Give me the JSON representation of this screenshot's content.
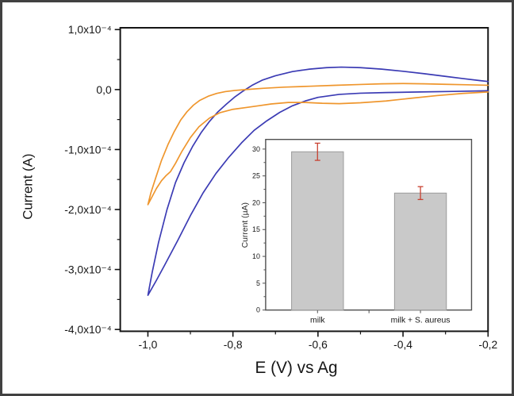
{
  "figure": {
    "background": "#ffffff",
    "border_color": "#414141"
  },
  "chart_data": [
    {
      "type": "line",
      "name": "cyclic-voltammogram",
      "title": "",
      "xlabel": "E (V) vs Ag",
      "ylabel": "Current (A)",
      "grid": false,
      "legend": "none",
      "xlim": [
        -1.065,
        -0.2
      ],
      "ylim_1e4_A": [
        -4.03,
        1.03
      ],
      "x_major_ticks": {
        "values": [
          -1.0,
          -0.8,
          -0.6,
          -0.4,
          -0.2
        ],
        "labels": [
          "-1,0",
          "-0,8",
          "-0,6",
          "-0,4",
          "-0,2"
        ]
      },
      "x_minor_ticks": [
        -0.9,
        -0.7,
        -0.5,
        -0.3
      ],
      "y_major_ticks": {
        "values_1e4": [
          1.0,
          0.0,
          -1.0,
          -2.0,
          -3.0,
          -4.0
        ],
        "labels": [
          "1,0x10⁻⁴",
          "0,0",
          "-1,0x10⁻⁴",
          "-2,0x10⁻⁴",
          "-3,0x10⁻⁴",
          "-4,0x10⁻⁴"
        ]
      },
      "y_minor_ticks_1e4": [
        0.5,
        -0.5,
        -1.5,
        -2.5,
        -3.5
      ],
      "series": [
        {
          "name": "blue CV scan",
          "color": "#3b3bb4",
          "points_E_vs_I1e4": [
            [
              -0.2,
              -0.02
            ],
            [
              -0.28,
              -0.03
            ],
            [
              -0.36,
              -0.04
            ],
            [
              -0.44,
              -0.05
            ],
            [
              -0.5,
              -0.06
            ],
            [
              -0.55,
              -0.08
            ],
            [
              -0.6,
              -0.13
            ],
            [
              -0.63,
              -0.19
            ],
            [
              -0.66,
              -0.27
            ],
            [
              -0.69,
              -0.38
            ],
            [
              -0.72,
              -0.52
            ],
            [
              -0.75,
              -0.68
            ],
            [
              -0.78,
              -0.89
            ],
            [
              -0.81,
              -1.13
            ],
            [
              -0.84,
              -1.4
            ],
            [
              -0.87,
              -1.72
            ],
            [
              -0.9,
              -2.1
            ],
            [
              -0.93,
              -2.52
            ],
            [
              -0.96,
              -2.92
            ],
            [
              -0.98,
              -3.18
            ],
            [
              -1.0,
              -3.43
            ],
            [
              -0.99,
              -3.05
            ],
            [
              -0.975,
              -2.55
            ],
            [
              -0.955,
              -2.0
            ],
            [
              -0.935,
              -1.55
            ],
            [
              -0.915,
              -1.22
            ],
            [
              -0.895,
              -0.95
            ],
            [
              -0.875,
              -0.72
            ],
            [
              -0.855,
              -0.53
            ],
            [
              -0.835,
              -0.37
            ],
            [
              -0.815,
              -0.24
            ],
            [
              -0.795,
              -0.12
            ],
            [
              -0.775,
              -0.02
            ],
            [
              -0.755,
              0.07
            ],
            [
              -0.73,
              0.16
            ],
            [
              -0.7,
              0.23
            ],
            [
              -0.66,
              0.3
            ],
            [
              -0.62,
              0.34
            ],
            [
              -0.58,
              0.365
            ],
            [
              -0.545,
              0.375
            ],
            [
              -0.5,
              0.365
            ],
            [
              -0.45,
              0.34
            ],
            [
              -0.4,
              0.305
            ],
            [
              -0.35,
              0.265
            ],
            [
              -0.3,
              0.22
            ],
            [
              -0.26,
              0.185
            ],
            [
              -0.22,
              0.15
            ],
            [
              -0.2,
              0.135
            ]
          ]
        },
        {
          "name": "orange CV scan",
          "color": "#ef962d",
          "points_E_vs_I1e4": [
            [
              -0.2,
              -0.04
            ],
            [
              -0.26,
              -0.065
            ],
            [
              -0.32,
              -0.1
            ],
            [
              -0.38,
              -0.145
            ],
            [
              -0.44,
              -0.19
            ],
            [
              -0.5,
              -0.22
            ],
            [
              -0.55,
              -0.235
            ],
            [
              -0.59,
              -0.228
            ],
            [
              -0.63,
              -0.215
            ],
            [
              -0.67,
              -0.215
            ],
            [
              -0.71,
              -0.24
            ],
            [
              -0.74,
              -0.27
            ],
            [
              -0.77,
              -0.3
            ],
            [
              -0.8,
              -0.33
            ],
            [
              -0.83,
              -0.385
            ],
            [
              -0.855,
              -0.475
            ],
            [
              -0.88,
              -0.62
            ],
            [
              -0.9,
              -0.8
            ],
            [
              -0.92,
              -1.03
            ],
            [
              -0.935,
              -1.23
            ],
            [
              -0.947,
              -1.37
            ],
            [
              -0.958,
              -1.44
            ],
            [
              -0.968,
              -1.52
            ],
            [
              -0.98,
              -1.65
            ],
            [
              -1.0,
              -1.92
            ],
            [
              -0.993,
              -1.72
            ],
            [
              -0.982,
              -1.48
            ],
            [
              -0.968,
              -1.18
            ],
            [
              -0.953,
              -0.92
            ],
            [
              -0.938,
              -0.7
            ],
            [
              -0.923,
              -0.51
            ],
            [
              -0.908,
              -0.37
            ],
            [
              -0.893,
              -0.26
            ],
            [
              -0.878,
              -0.18
            ],
            [
              -0.858,
              -0.11
            ],
            [
              -0.838,
              -0.065
            ],
            [
              -0.818,
              -0.035
            ],
            [
              -0.795,
              -0.015
            ],
            [
              -0.77,
              0.0
            ],
            [
              -0.73,
              0.02
            ],
            [
              -0.68,
              0.04
            ],
            [
              -0.62,
              0.055
            ],
            [
              -0.56,
              0.07
            ],
            [
              -0.5,
              0.085
            ],
            [
              -0.45,
              0.095
            ],
            [
              -0.4,
              0.1
            ],
            [
              -0.35,
              0.095
            ],
            [
              -0.3,
              0.088
            ],
            [
              -0.25,
              0.08
            ],
            [
              -0.2,
              0.072
            ]
          ]
        }
      ]
    },
    {
      "type": "bar",
      "name": "inset-bar-chart",
      "title": "",
      "xlabel": "",
      "ylabel": "Current (µA)",
      "grid": false,
      "categories": [
        "milk",
        "milk + S. aureus"
      ],
      "values": [
        29.5,
        21.8
      ],
      "errors": [
        1.6,
        1.2
      ],
      "ylim": [
        0,
        31.8
      ],
      "y_major_ticks": [
        0,
        5,
        10,
        15,
        20,
        25,
        30
      ],
      "y_minor_ticks": [
        2.5,
        7.5,
        12.5,
        17.5,
        22.5,
        27.5
      ],
      "bar_fill": "#c9c9c9",
      "bar_stroke": "#9b9b9b",
      "error_color": "#c8402f"
    }
  ]
}
